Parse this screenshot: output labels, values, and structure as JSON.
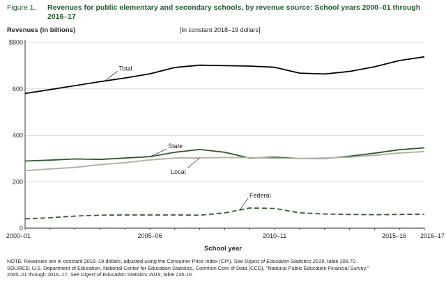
{
  "figure": {
    "label": "Figure 1.",
    "title": "Revenues for public elementary and secondary schools, by revenue source: School years 2000–01 through 2016–17"
  },
  "chart_data": {
    "type": "line",
    "title": "Revenues for public elementary and secondary schools, by revenue source: School years 2000–01 through 2016–17",
    "ylabel": "Revenues (in billions)",
    "xlabel": "School year",
    "unit_note": "[In constant 2018–19 dollars]",
    "ylim": [
      0,
      800
    ],
    "yticks": [
      0,
      200,
      400,
      600,
      800
    ],
    "ytick_labels": [
      "0",
      "200",
      "400",
      "600",
      "$800"
    ],
    "x": [
      "2000–01",
      "2001–02",
      "2002–03",
      "2003–04",
      "2004–05",
      "2005–06",
      "2006–07",
      "2007–08",
      "2008–09",
      "2009–10",
      "2010–11",
      "2011–12",
      "2012–13",
      "2013–14",
      "2014–15",
      "2015–16",
      "2016–17"
    ],
    "xtick_labels": [
      {
        "index": 0,
        "label": "2000–01"
      },
      {
        "index": 5,
        "label": "2005–06"
      },
      {
        "index": 10,
        "label": "2010–11"
      },
      {
        "index": 15,
        "label": "2015–16"
      },
      {
        "index": 16,
        "label": "2016–17"
      }
    ],
    "series": [
      {
        "name": "Total",
        "color": "#000000",
        "dash": "solid",
        "values": [
          580,
          597,
          614,
          631,
          647,
          665,
          692,
          702,
          700,
          698,
          693,
          668,
          664,
          675,
          695,
          722,
          738
        ]
      },
      {
        "name": "State",
        "color": "#2d5a2b",
        "dash": "solid",
        "values": [
          289,
          293,
          298,
          296,
          302,
          308,
          327,
          339,
          327,
          302,
          306,
          300,
          300,
          310,
          323,
          338,
          346
        ]
      },
      {
        "name": "Local",
        "color": "#b3b3a5",
        "dash": "solid",
        "values": [
          248,
          255,
          262,
          274,
          282,
          294,
          302,
          303,
          304,
          304,
          301,
          300,
          302,
          306,
          314,
          324,
          330
        ]
      },
      {
        "name": "Federal",
        "color": "#2d5a2b",
        "dash": "dashed",
        "values": [
          40,
          45,
          52,
          56,
          57,
          57,
          57,
          56,
          66,
          87,
          85,
          66,
          61,
          59,
          58,
          59,
          60
        ]
      }
    ],
    "annotations": [
      {
        "series": "Total",
        "text": "Total"
      },
      {
        "series": "State",
        "text": "State"
      },
      {
        "series": "Local",
        "text": "Local"
      },
      {
        "series": "Federal",
        "text": "Federal"
      }
    ]
  },
  "notes": {
    "note_1": "NOTE: Revenues are in constant 2018–19 dollars, adjusted using the Consumer Price Index (CPI). See ",
    "note_pub": "Digest of Education Statistics 2019",
    "note_2": ", table 106.70.",
    "source_1": "SOURCE: U.S. Department of Education, National Center for Education Statistics, Common Core of Data (CCD), \"National Public Education Financial Survey,\"",
    "source_2": "2000–01 through 2016–17. See ",
    "source_pub": "Digest of Education Statistics 2019",
    "source_3": ", table 235.10."
  }
}
